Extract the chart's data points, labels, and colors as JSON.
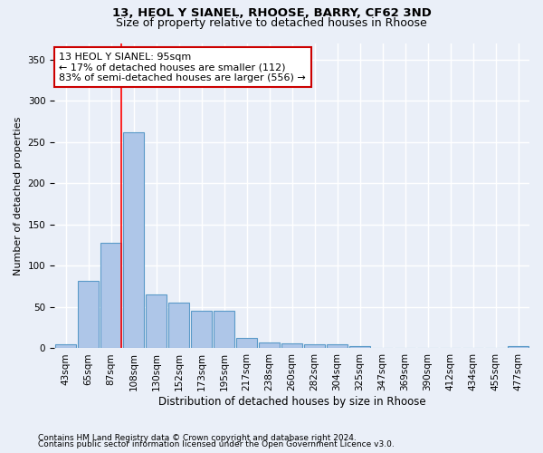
{
  "title1": "13, HEOL Y SIANEL, RHOOSE, BARRY, CF62 3ND",
  "title2": "Size of property relative to detached houses in Rhoose",
  "xlabel": "Distribution of detached houses by size in Rhoose",
  "ylabel": "Number of detached properties",
  "footnote1": "Contains HM Land Registry data © Crown copyright and database right 2024.",
  "footnote2": "Contains public sector information licensed under the Open Government Licence v3.0.",
  "annotation_title": "13 HEOL Y SIANEL: 95sqm",
  "annotation_line1": "← 17% of detached houses are smaller (112)",
  "annotation_line2": "83% of semi-detached houses are larger (556) →",
  "bin_labels": [
    "43sqm",
    "65sqm",
    "87sqm",
    "108sqm",
    "130sqm",
    "152sqm",
    "173sqm",
    "195sqm",
    "217sqm",
    "238sqm",
    "260sqm",
    "282sqm",
    "304sqm",
    "325sqm",
    "347sqm",
    "369sqm",
    "390sqm",
    "412sqm",
    "434sqm",
    "455sqm",
    "477sqm"
  ],
  "bar_heights": [
    5,
    82,
    128,
    262,
    65,
    55,
    45,
    45,
    13,
    7,
    6,
    5,
    5,
    3,
    1,
    0,
    0,
    0,
    0,
    0,
    3
  ],
  "bar_color": "#aec6e8",
  "bar_edge_color": "#5a9ac8",
  "red_line_index": 2,
  "ylim": [
    0,
    370
  ],
  "yticks": [
    0,
    50,
    100,
    150,
    200,
    250,
    300,
    350
  ],
  "annotation_box_color": "#ffffff",
  "annotation_box_edge": "#cc0000",
  "bg_color": "#eaeff8",
  "plot_bg_color": "#eaeff8",
  "grid_color": "#ffffff",
  "title1_fontsize": 9.5,
  "title2_fontsize": 9,
  "ylabel_fontsize": 8,
  "xlabel_fontsize": 8.5,
  "tick_fontsize": 7.5,
  "annotation_fontsize": 8,
  "footnote_fontsize": 6.5
}
